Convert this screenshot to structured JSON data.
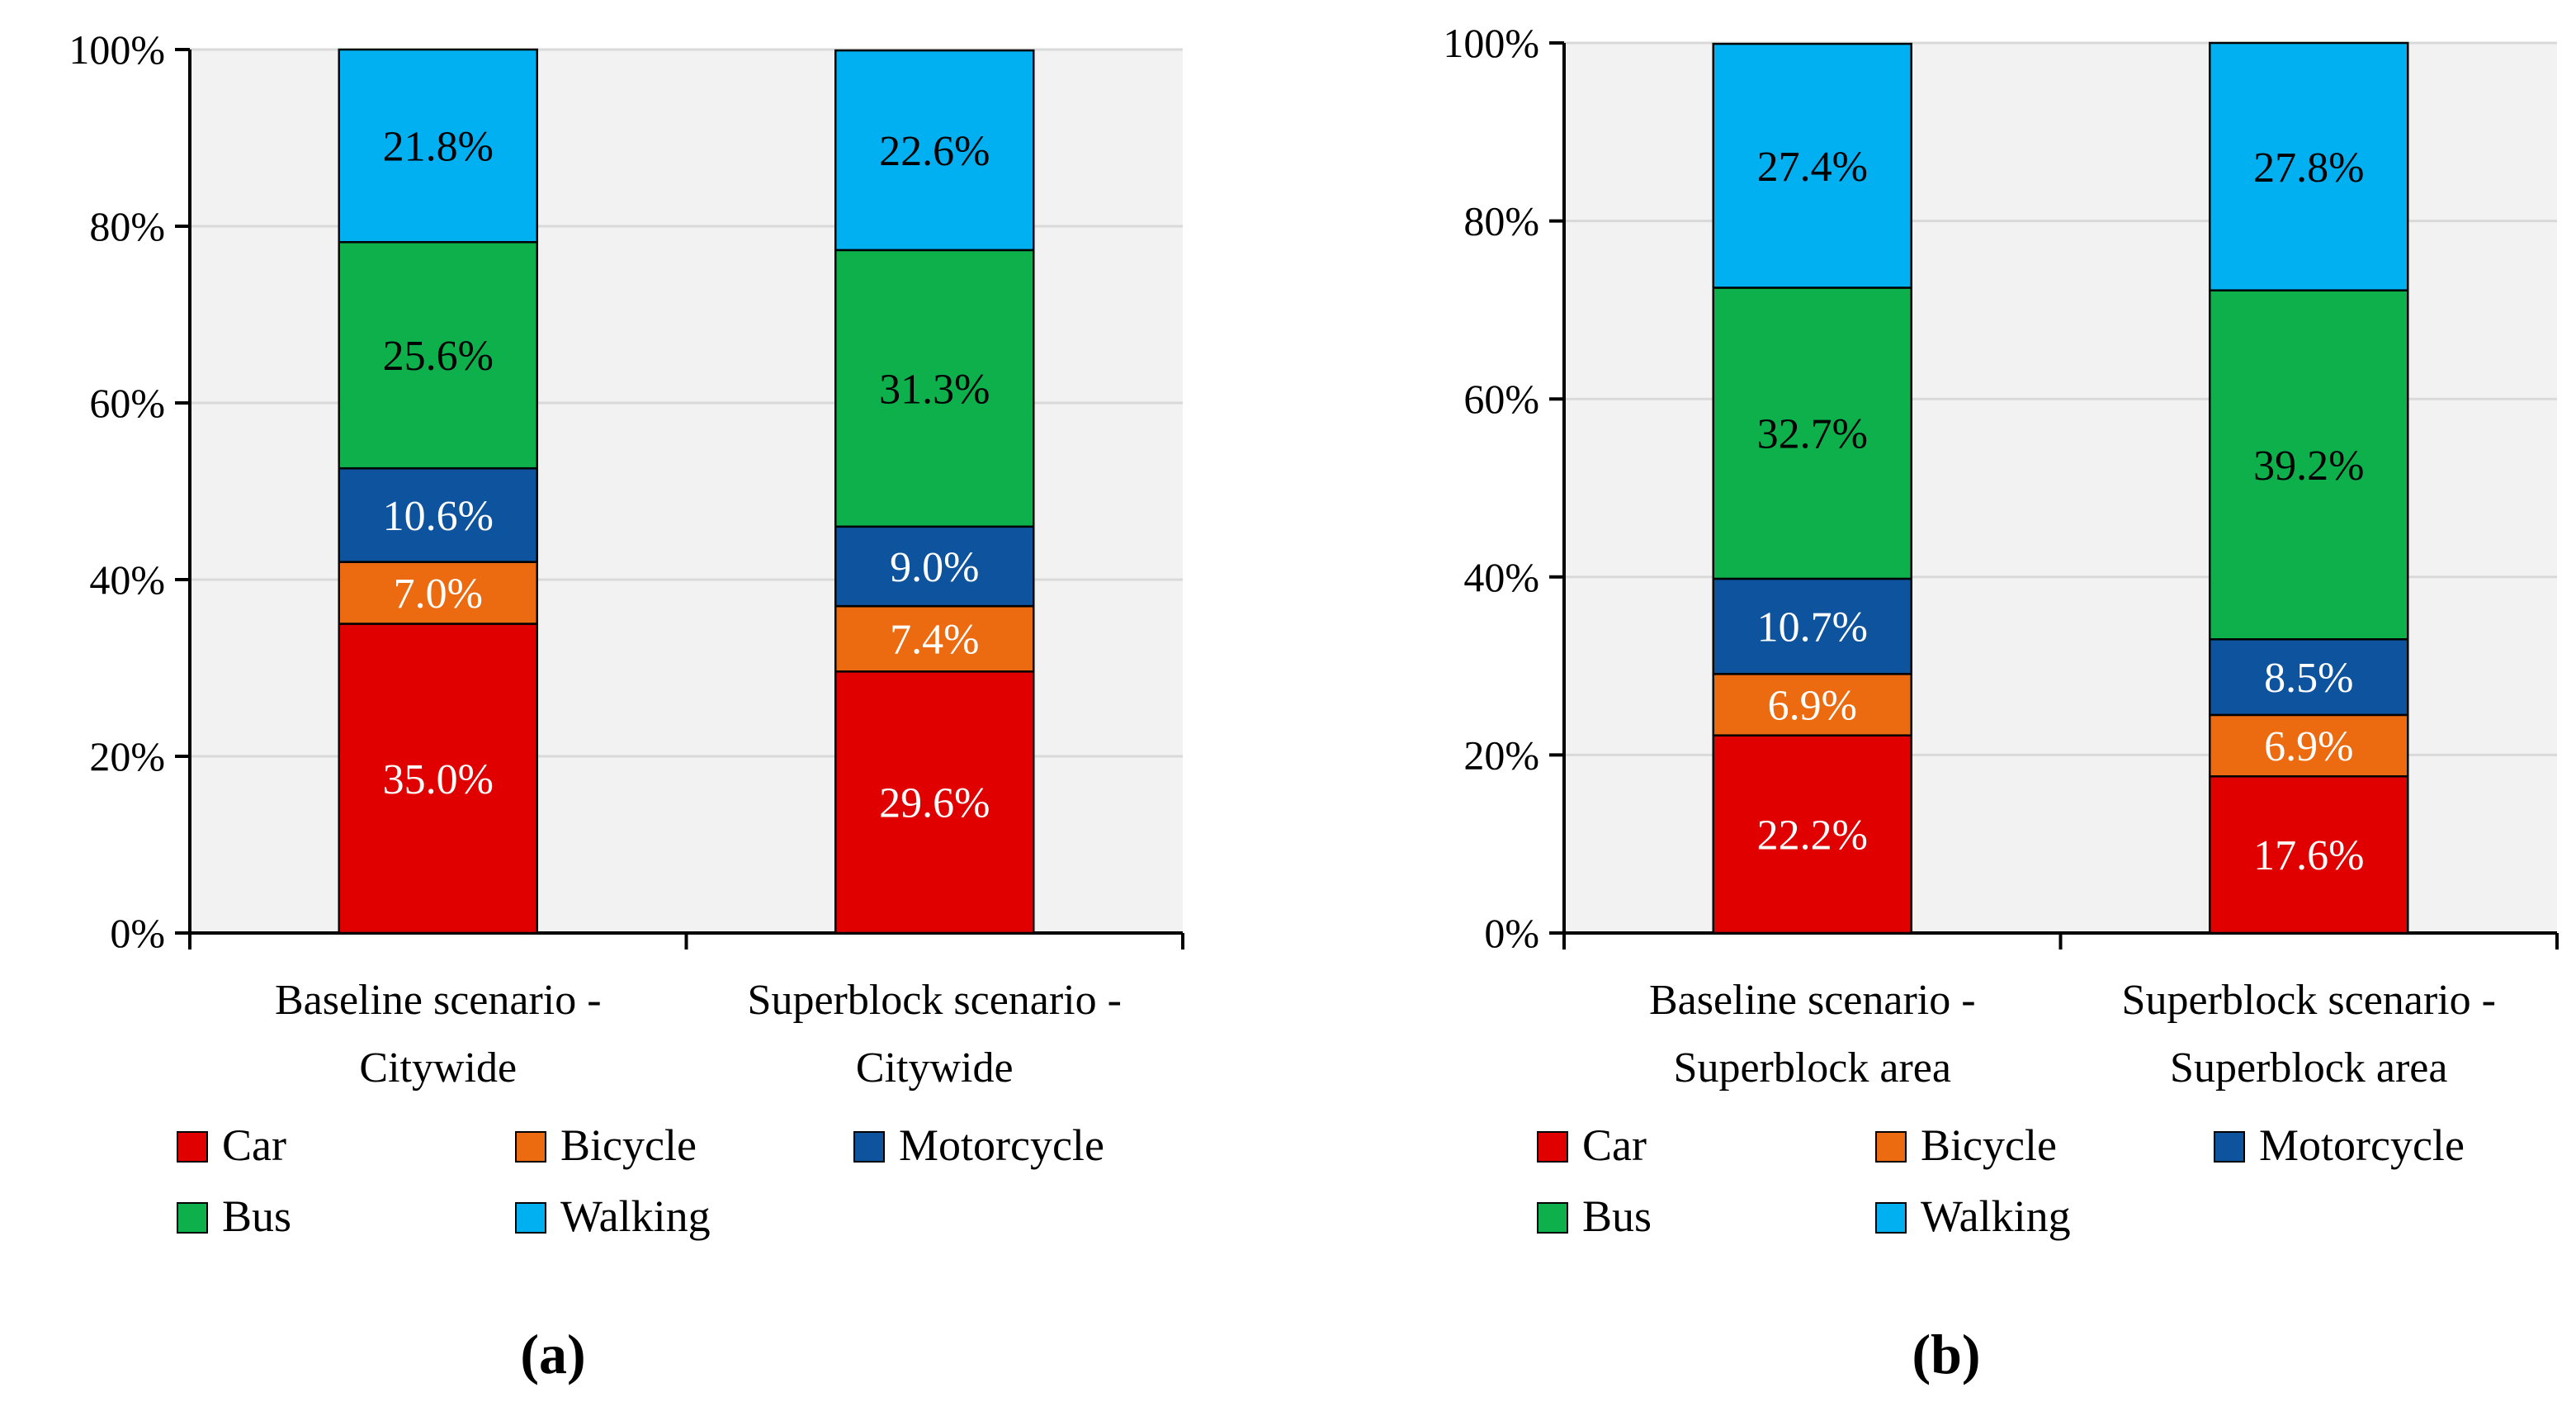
{
  "legend_items": [
    {
      "name": "Car",
      "color": "#e00000"
    },
    {
      "name": "Bicycle",
      "color": "#ec6a10"
    },
    {
      "name": "Motorcycle",
      "color": "#0e539e"
    },
    {
      "name": "Bus",
      "color": "#0db04b"
    },
    {
      "name": "Walking",
      "color": "#00b0f0"
    }
  ],
  "chart_data": [
    {
      "type": "bar",
      "stacked": true,
      "panel_label": "(a)",
      "categories": [
        [
          "Baseline scenario -",
          "Citywide"
        ],
        [
          "Superblock scenario -",
          "Citywide"
        ]
      ],
      "series": [
        {
          "name": "Car",
          "values": [
            35.0,
            29.6
          ]
        },
        {
          "name": "Bicycle",
          "values": [
            7.0,
            7.4
          ]
        },
        {
          "name": "Motorcycle",
          "values": [
            10.6,
            9.0
          ]
        },
        {
          "name": "Bus",
          "values": [
            25.6,
            31.3
          ]
        },
        {
          "name": "Walking",
          "values": [
            21.8,
            22.6
          ]
        }
      ],
      "ylim": [
        0,
        100
      ],
      "yticks": [
        "0%",
        "20%",
        "40%",
        "60%",
        "80%",
        "100%"
      ],
      "grid": true,
      "legend_position": "bottom"
    },
    {
      "type": "bar",
      "stacked": true,
      "panel_label": "(b)",
      "categories": [
        [
          "Baseline scenario -",
          "Superblock area"
        ],
        [
          "Superblock scenario -",
          "Superblock area"
        ]
      ],
      "series": [
        {
          "name": "Car",
          "values": [
            22.2,
            17.6
          ]
        },
        {
          "name": "Bicycle",
          "values": [
            6.9,
            6.9
          ]
        },
        {
          "name": "Motorcycle",
          "values": [
            10.7,
            8.5
          ]
        },
        {
          "name": "Bus",
          "values": [
            32.7,
            39.2
          ]
        },
        {
          "name": "Walking",
          "values": [
            27.4,
            27.8
          ]
        }
      ],
      "ylim": [
        0,
        100
      ],
      "yticks": [
        "0%",
        "20%",
        "40%",
        "60%",
        "80%",
        "100%"
      ],
      "grid": true,
      "legend_position": "bottom"
    }
  ]
}
